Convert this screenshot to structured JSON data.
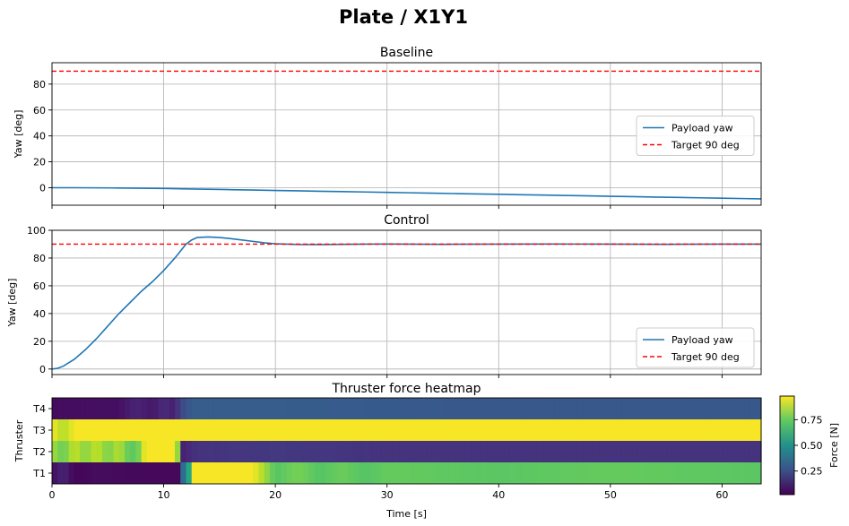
{
  "figure": {
    "title": "Plate / X1Y1"
  },
  "chart_data": [
    {
      "type": "line",
      "title": "Baseline",
      "xlabel": "",
      "ylabel": "Yaw [deg]",
      "xlim": [
        0,
        63.5
      ],
      "ylim": [
        -13.5,
        96.5
      ],
      "xticks": [
        0,
        10,
        20,
        30,
        40,
        50,
        60
      ],
      "yticks": [
        0,
        20,
        40,
        60,
        80
      ],
      "grid": true,
      "legend": "center-right",
      "series": [
        {
          "name": "Payload yaw",
          "color": "#1f77b4",
          "style": "solid",
          "x": [
            0,
            2,
            4,
            6,
            8,
            10,
            12,
            14,
            16,
            18,
            20,
            22,
            24,
            26,
            28,
            30,
            32,
            34,
            36,
            38,
            40,
            42,
            44,
            46,
            48,
            50,
            52,
            54,
            56,
            58,
            60,
            62,
            63.5
          ],
          "y": [
            0,
            0,
            -0.1,
            -0.2,
            -0.4,
            -0.6,
            -0.9,
            -1.2,
            -1.5,
            -1.8,
            -2.1,
            -2.4,
            -2.7,
            -3.0,
            -3.3,
            -3.6,
            -3.9,
            -4.2,
            -4.5,
            -4.8,
            -5.1,
            -5.4,
            -5.7,
            -6.0,
            -6.3,
            -6.6,
            -6.9,
            -7.2,
            -7.5,
            -7.8,
            -8.1,
            -8.4,
            -8.6
          ]
        },
        {
          "name": "Target 90 deg",
          "color": "#ff0000",
          "style": "dashed",
          "x": [
            0,
            63.5
          ],
          "y": [
            90,
            90
          ]
        }
      ]
    },
    {
      "type": "line",
      "title": "Control",
      "xlabel": "",
      "ylabel": "Yaw [deg]",
      "xlim": [
        0,
        63.5
      ],
      "ylim": [
        -4,
        100
      ],
      "xticks": [
        0,
        10,
        20,
        30,
        40,
        50,
        60
      ],
      "yticks": [
        0,
        20,
        40,
        60,
        80,
        100
      ],
      "grid": true,
      "legend": "lower-right",
      "series": [
        {
          "name": "Payload yaw",
          "color": "#1f77b4",
          "style": "solid",
          "x": [
            0,
            0.5,
            1,
            2,
            3,
            4,
            5,
            6,
            7,
            8,
            9,
            10,
            11,
            12,
            12.5,
            13,
            14,
            15,
            16,
            17,
            18,
            19,
            20,
            22,
            24,
            26,
            28,
            30,
            35,
            40,
            45,
            50,
            55,
            60,
            63.5
          ],
          "y": [
            0,
            0.5,
            2,
            7,
            14,
            22,
            31,
            40,
            48,
            56,
            63,
            71,
            80,
            90,
            93,
            94.8,
            95.2,
            94.8,
            94,
            93,
            92,
            91,
            90.3,
            89.8,
            89.7,
            89.9,
            90,
            90.1,
            89.9,
            90,
            90.1,
            90,
            89.9,
            90,
            90
          ]
        },
        {
          "name": "Target 90 deg",
          "color": "#ff0000",
          "style": "dashed",
          "x": [
            0,
            63.5
          ],
          "y": [
            90,
            90
          ]
        }
      ]
    },
    {
      "type": "heatmap",
      "title": "Thruster force heatmap",
      "xlabel": "Time [s]",
      "ylabel": "Thruster",
      "xlim": [
        0,
        63.5
      ],
      "xticks": [
        0,
        10,
        20,
        30,
        40,
        50,
        60
      ],
      "rows": [
        "T4",
        "T3",
        "T2",
        "T1"
      ],
      "colormap": "viridis",
      "colorbar": {
        "label": "Force [N]",
        "range": [
          0.02,
          0.98
        ],
        "ticks": [
          0.25,
          0.5,
          0.75
        ]
      },
      "values": [
        {
          "row": "T4",
          "t": [
            0,
            6,
            7.5,
            9,
            10,
            11,
            11.5,
            12.5,
            15,
            20,
            30,
            40,
            50,
            63.5
          ],
          "v": [
            0.05,
            0.06,
            0.12,
            0.08,
            0.14,
            0.1,
            0.22,
            0.3,
            0.3,
            0.3,
            0.29,
            0.28,
            0.28,
            0.28
          ]
        },
        {
          "row": "T3",
          "t": [
            0,
            1,
            2,
            63.5
          ],
          "v": [
            0.97,
            0.86,
            0.97,
            0.97
          ]
        },
        {
          "row": "T2",
          "t": [
            0,
            1,
            2,
            3,
            4,
            5,
            6,
            7,
            8,
            8.3,
            11.2,
            11.5,
            13,
            20,
            30,
            40,
            50,
            63.5
          ],
          "v": [
            0.85,
            0.75,
            0.9,
            0.8,
            0.9,
            0.78,
            0.88,
            0.72,
            0.8,
            0.97,
            0.97,
            0.1,
            0.16,
            0.18,
            0.16,
            0.16,
            0.16,
            0.16
          ]
        },
        {
          "row": "T1",
          "t": [
            0,
            1,
            2,
            4,
            8,
            11.3,
            11.6,
            12,
            12.5,
            18,
            19,
            20,
            22,
            24,
            26,
            28,
            30,
            40,
            50,
            63.5
          ],
          "v": [
            0.05,
            0.12,
            0.03,
            0.05,
            0.04,
            0.04,
            0.45,
            0.2,
            0.97,
            0.97,
            0.85,
            0.72,
            0.78,
            0.72,
            0.76,
            0.72,
            0.75,
            0.73,
            0.75,
            0.73
          ]
        }
      ]
    }
  ]
}
